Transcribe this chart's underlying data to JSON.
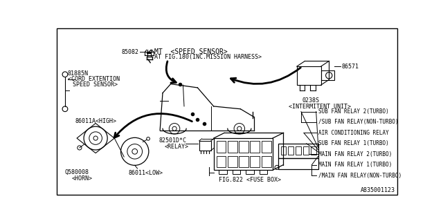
{
  "bg_color": "#ffffff",
  "border_color": "#000000",
  "diagram_id": "A835001123",
  "relay_labels": [
    "SUB FAN RELAY 2(TURBO)",
    "/SUB FAN RELAY(NON-TURBO)",
    "AIR CONDITIONING RELAY",
    "SUB FAN RELAY 1(TURBO)",
    "MAIN FAN RELAY 2(TURBO)",
    "MAIN FAN RELAY 1(TURBO)",
    "/MAIN FAN RELAY(NON-TURBO)"
  ],
  "line_color": "#000000",
  "text_color": "#000000",
  "font_size": 7.0,
  "small_font_size": 6.0
}
